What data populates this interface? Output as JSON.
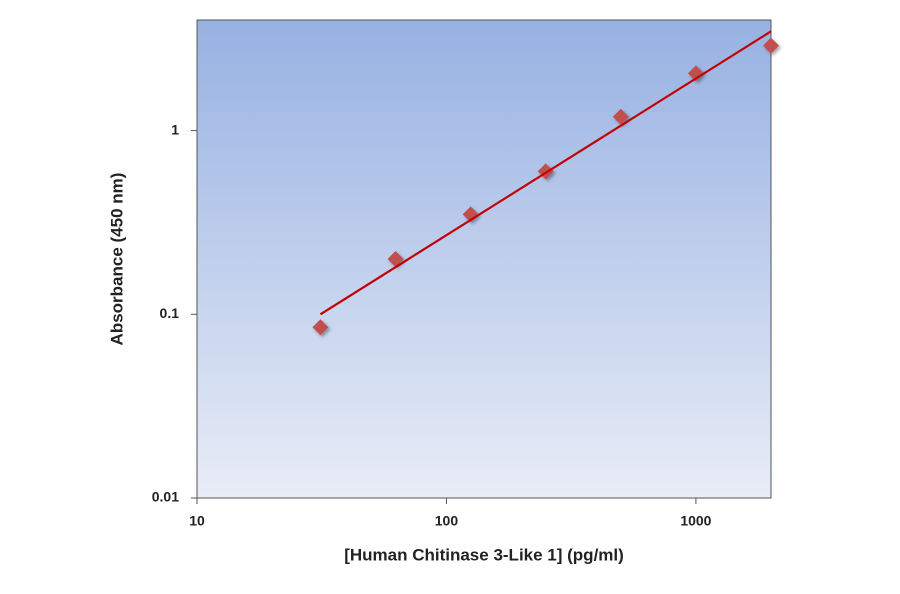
{
  "chart_data": {
    "type": "scatter",
    "xlabel": "[Human Chitinase 3-Like 1] (pg/ml)",
    "ylabel": "Absorbance (450 nm)",
    "xscale": "log",
    "yscale": "log",
    "xlim": [
      10,
      2000
    ],
    "ylim": [
      0.01,
      4
    ],
    "xticks": [
      10,
      100,
      1000
    ],
    "yticks": [
      0.01,
      0.1,
      1
    ],
    "series": [
      {
        "type": "scatter",
        "color": "#c0504d",
        "x": [
          31.25,
          62.5,
          125,
          250,
          500,
          1000,
          2000
        ],
        "values": [
          0.085,
          0.2,
          0.35,
          0.6,
          1.19,
          2.05,
          2.9
        ]
      },
      {
        "type": "line",
        "color": "#c00000",
        "x": [
          31.25,
          2000
        ],
        "values": [
          0.1,
          3.47
        ]
      }
    ]
  }
}
